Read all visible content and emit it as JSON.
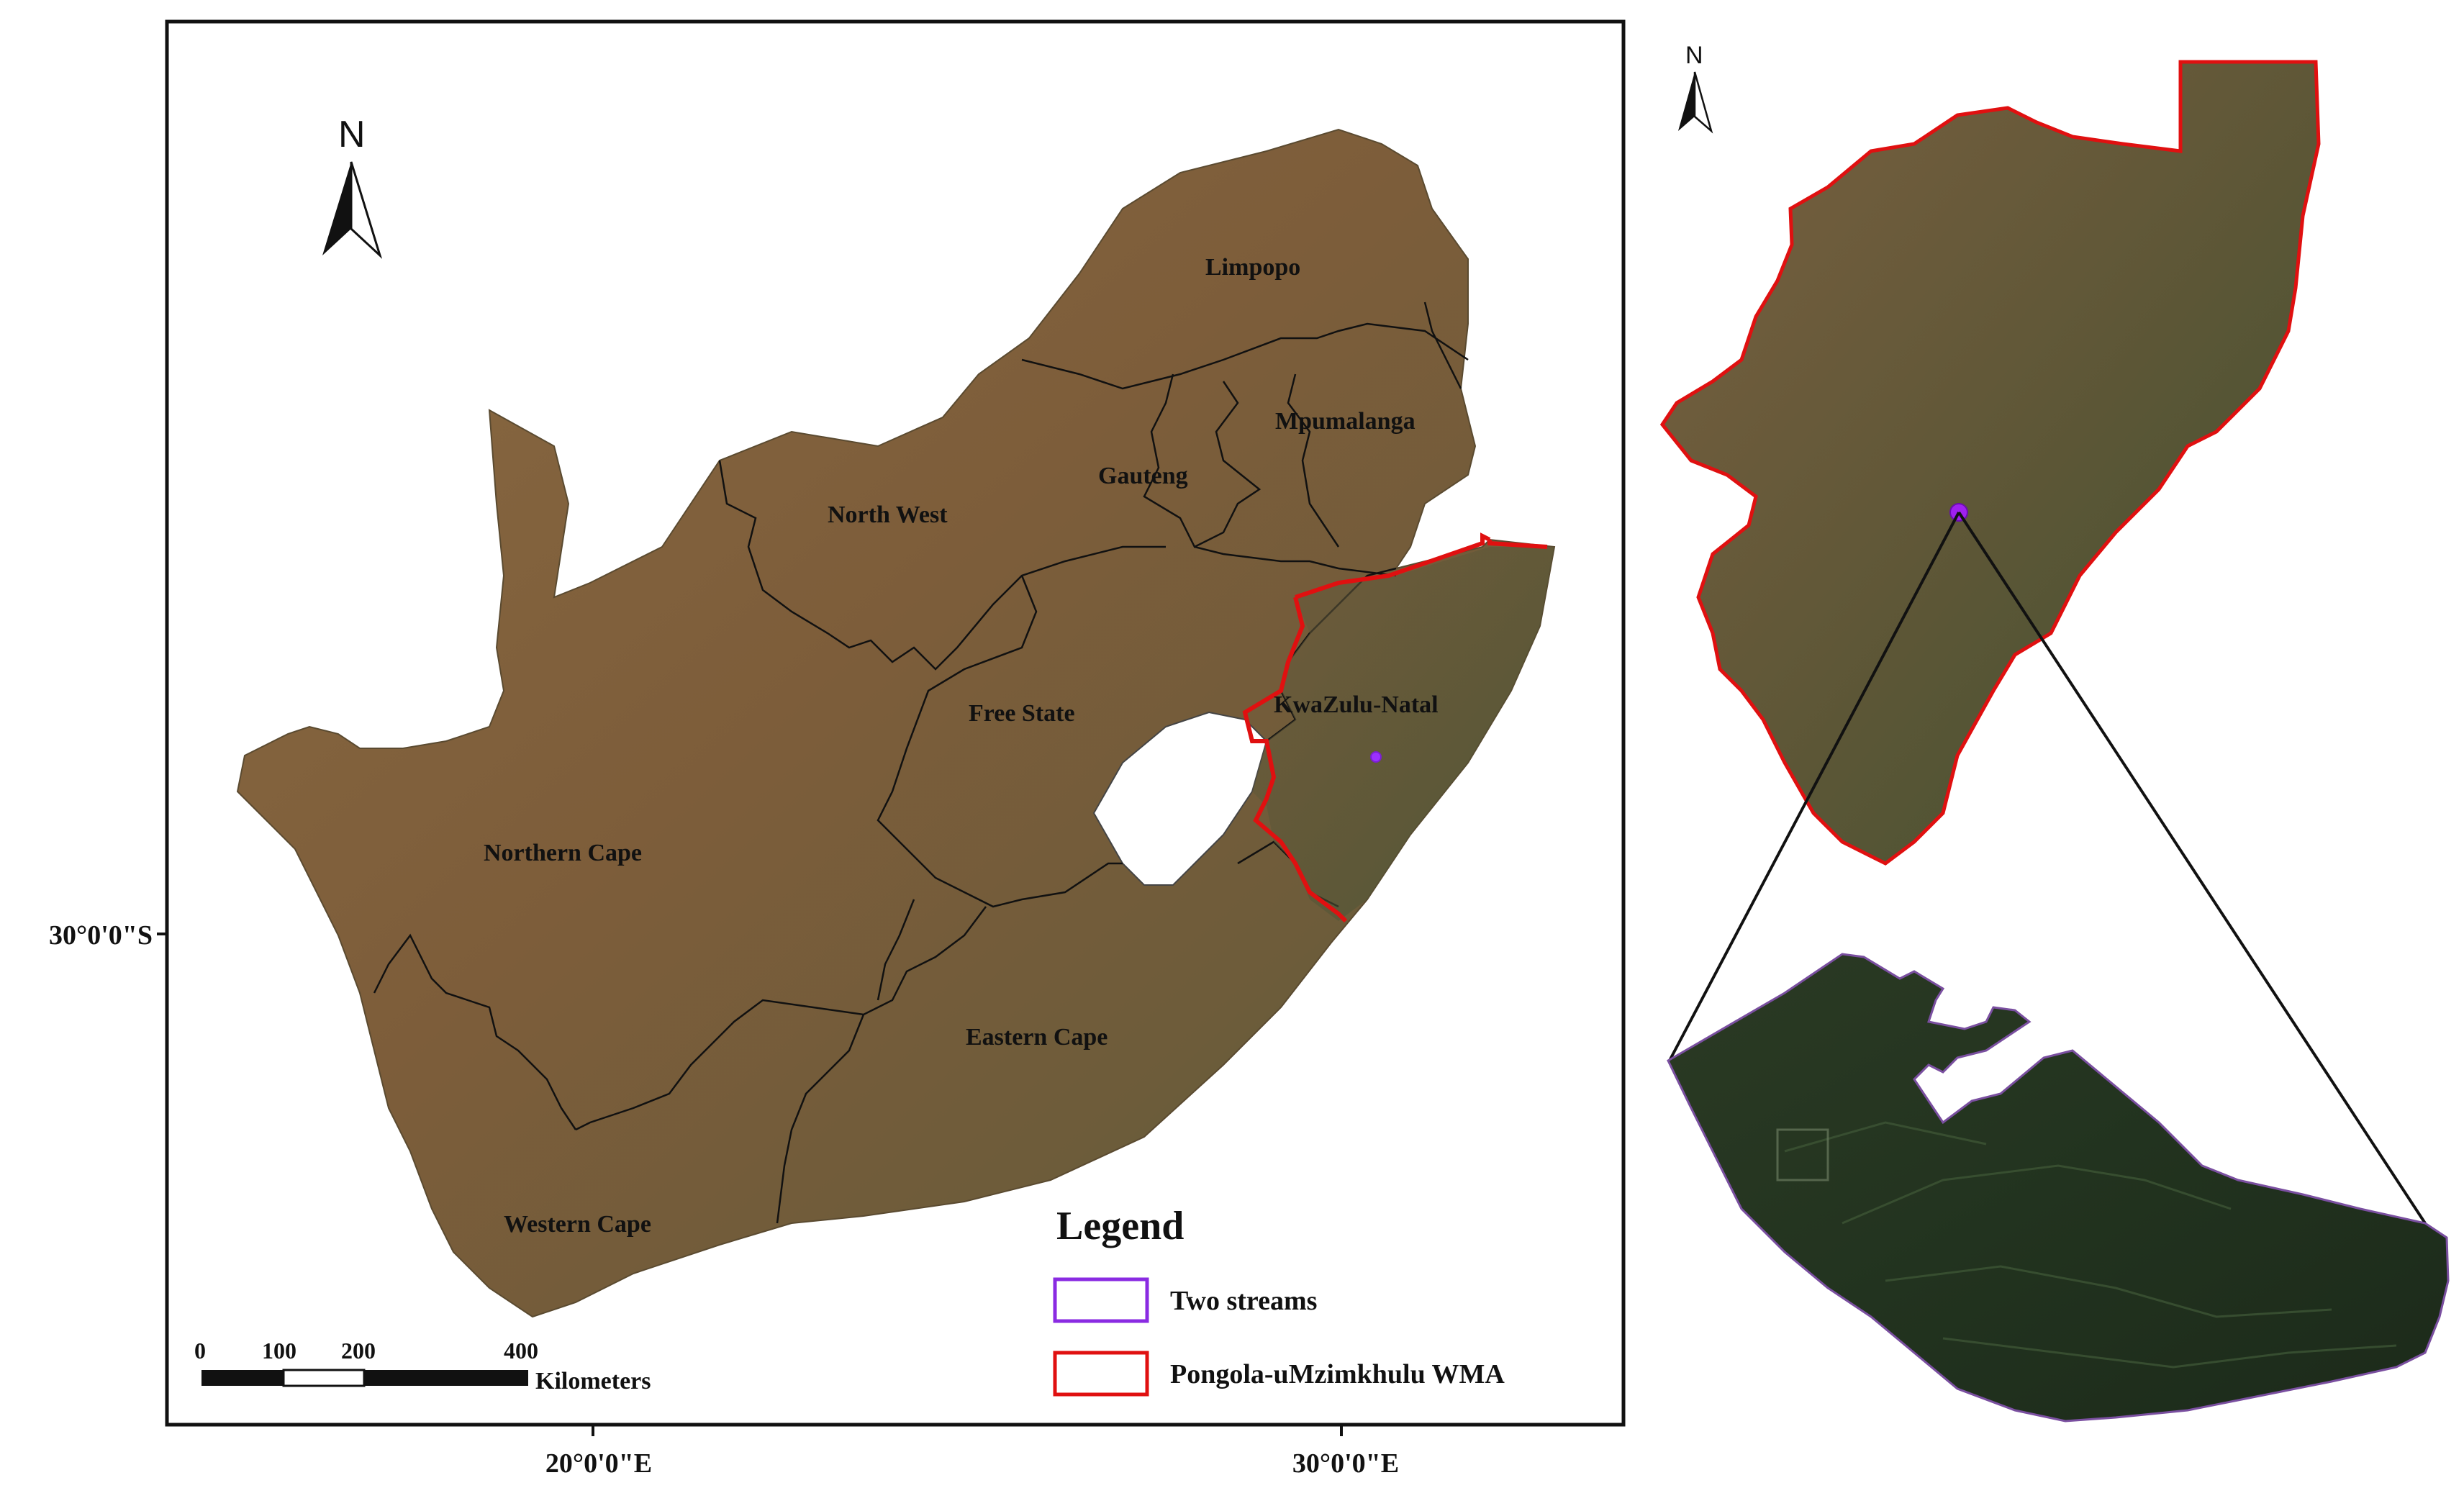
{
  "main_map": {
    "north_label": "N",
    "provinces": [
      {
        "key": "limpopo",
        "label": "Limpopo"
      },
      {
        "key": "mpumalanga",
        "label": "Mpumalanga"
      },
      {
        "key": "gauteng",
        "label": "Gauteng"
      },
      {
        "key": "north_west",
        "label": "North West"
      },
      {
        "key": "free_state",
        "label": "Free State"
      },
      {
        "key": "kwazulu_natal",
        "label": "KwaZulu-Natal"
      },
      {
        "key": "northern_cape",
        "label": "Northern Cape"
      },
      {
        "key": "eastern_cape",
        "label": "Eastern Cape"
      },
      {
        "key": "western_cape",
        "label": "Western Cape"
      }
    ],
    "graticule": {
      "lat_label": "30°0'0\"S",
      "lon_labels": [
        "20°0'0\"E",
        "30°0'0\"E"
      ]
    },
    "scale_bar": {
      "ticks": [
        "0",
        "100",
        "200",
        "400"
      ],
      "unit": "Kilometers"
    }
  },
  "legend": {
    "title": "Legend",
    "items": [
      {
        "label": "Two streams",
        "color": "#8a2be2"
      },
      {
        "label": "Pongola-uMzimkhulu WMA",
        "color": "#e01010"
      }
    ]
  },
  "inset": {
    "north_label": "N",
    "wma_outline_color": "#e01010",
    "site_marker_color": "#a020f0"
  }
}
